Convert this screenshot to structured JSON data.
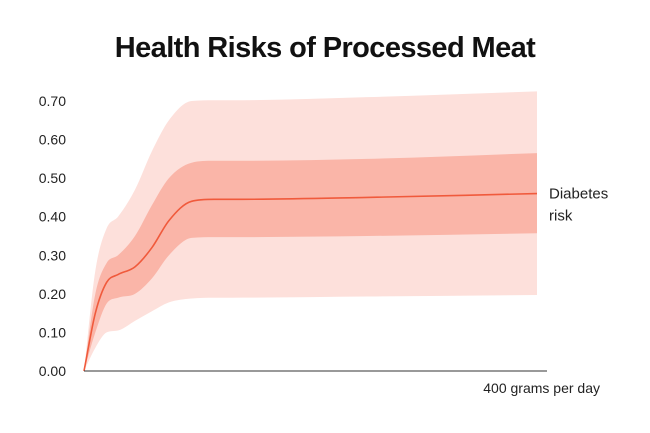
{
  "chart_data": {
    "type": "area",
    "title": "Health Risks of Processed Meat",
    "xlabel": "",
    "ylabel": "",
    "x_end_label": "400 grams per day",
    "xlim": [
      0,
      400
    ],
    "ylim": [
      0,
      0.7
    ],
    "y_ticks": [
      "0.00",
      "0.10",
      "0.20",
      "0.30",
      "0.40",
      "0.50",
      "0.60",
      "0.70"
    ],
    "grid": false,
    "legend": "none",
    "x": [
      0,
      10,
      20,
      30,
      45,
      60,
      75,
      95,
      115,
      130,
      250,
      400
    ],
    "series": [
      {
        "name": "Diabetes risk",
        "label_lines": [
          "Diabetes",
          "risk"
        ],
        "color": "#f05a3c",
        "values": [
          0.0,
          0.15,
          0.23,
          0.25,
          0.27,
          0.32,
          0.39,
          0.44,
          0.445,
          0.445,
          0.45,
          0.46
        ],
        "band_inner_lower": [
          0.0,
          0.1,
          0.175,
          0.19,
          0.2,
          0.24,
          0.3,
          0.345,
          0.347,
          0.347,
          0.35,
          0.357
        ],
        "band_inner_upper": [
          0.0,
          0.2,
          0.28,
          0.3,
          0.35,
          0.43,
          0.5,
          0.54,
          0.545,
          0.545,
          0.55,
          0.565
        ],
        "band_outer_lower": [
          0.0,
          0.06,
          0.1,
          0.105,
          0.13,
          0.155,
          0.178,
          0.188,
          0.19,
          0.19,
          0.193,
          0.197
        ],
        "band_outer_upper": [
          0.0,
          0.26,
          0.37,
          0.4,
          0.47,
          0.57,
          0.65,
          0.7,
          0.702,
          0.702,
          0.71,
          0.725
        ]
      }
    ],
    "colors": {
      "outer_band": "#fde0db",
      "inner_band": "#fab5a8",
      "line": "#f05a3c",
      "axis": "#333333"
    }
  }
}
